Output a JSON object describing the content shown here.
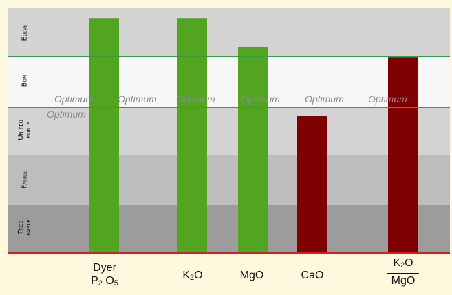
{
  "chart_data": {
    "type": "bar",
    "bands": [
      {
        "name": "Eleve",
        "label_lines": [
          "Eleve"
        ],
        "color": "#d3d3d3"
      },
      {
        "name": "Bon",
        "label_lines": [
          "Bon"
        ],
        "color": "#f7f7f7"
      },
      {
        "name": "Un peu faible",
        "label_lines": [
          "Un peu",
          "faible"
        ],
        "color": "#d3d3d3"
      },
      {
        "name": "Faible",
        "label_lines": [
          "Faible"
        ],
        "color": "#bdbdbd"
      },
      {
        "name": "Tres faible",
        "label_lines": [
          "Tres",
          "faible"
        ],
        "color": "#9c9c9c"
      }
    ],
    "optimum_label": "Optimum",
    "bars": [
      {
        "label": "Dyer P2O5",
        "value": 4.8,
        "color": "#52a521"
      },
      {
        "label": "K2O",
        "value": 4.8,
        "color": "#52a521"
      },
      {
        "label": "MgO",
        "value": 4.2,
        "color": "#52a521"
      },
      {
        "label": "CaO",
        "value": 2.8,
        "color": "#7f0000"
      },
      {
        "label": "K2O/MgO",
        "value": 4.0,
        "color": "#7f0000"
      }
    ],
    "ylim": [
      0,
      5
    ],
    "grid": false,
    "legend": "none"
  },
  "xlabels": {
    "dyer_top": "Dyer",
    "p2o5_p": "P",
    "p2o5_sub": "2",
    "p2o5_o": "O",
    "p2o5_sub2": "5",
    "k2o_k": "K",
    "k2o_sub": "2",
    "k2o_o": "O",
    "mgo": "MgO",
    "cao": "CaO",
    "ratio_num_k": "K",
    "ratio_num_sub": "2",
    "ratio_num_o": "O",
    "ratio_den": "MgO"
  },
  "colors": {
    "background": "#fdf8de",
    "optimum_line": "#3a9a4a",
    "baseline": "#d02020"
  }
}
